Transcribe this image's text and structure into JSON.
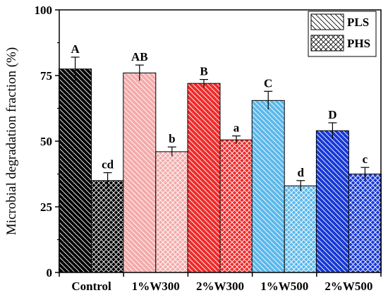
{
  "chart_data": {
    "type": "bar",
    "title": "",
    "xlabel": "",
    "ylabel": "Microbial degradation fraction (%)",
    "ylim": [
      0,
      100
    ],
    "yticks": [
      0,
      25,
      50,
      75,
      100
    ],
    "grid": false,
    "legend_position": "top-right",
    "categories": [
      "Control",
      "1%W300",
      "2%W300",
      "1%W500",
      "2%W500"
    ],
    "category_colors": [
      "#000000",
      "#f4aaaa",
      "#ee2b2b",
      "#5bb8ea",
      "#1739d6"
    ],
    "series": [
      {
        "name": "PLS",
        "pattern": "diagonal-lines",
        "values": [
          77.5,
          76,
          72,
          65.5,
          54
        ],
        "errors": [
          4.5,
          3.0,
          1.5,
          3.5,
          3.0
        ],
        "labels": [
          "A",
          "AB",
          "B",
          "C",
          "D"
        ]
      },
      {
        "name": "PHS",
        "pattern": "crosshatch",
        "values": [
          35,
          46,
          50.5,
          33,
          37.5
        ],
        "errors": [
          3.0,
          1.8,
          1.5,
          2.0,
          2.5
        ],
        "labels": [
          "cd",
          "b",
          "a",
          "d",
          "c"
        ]
      }
    ]
  }
}
